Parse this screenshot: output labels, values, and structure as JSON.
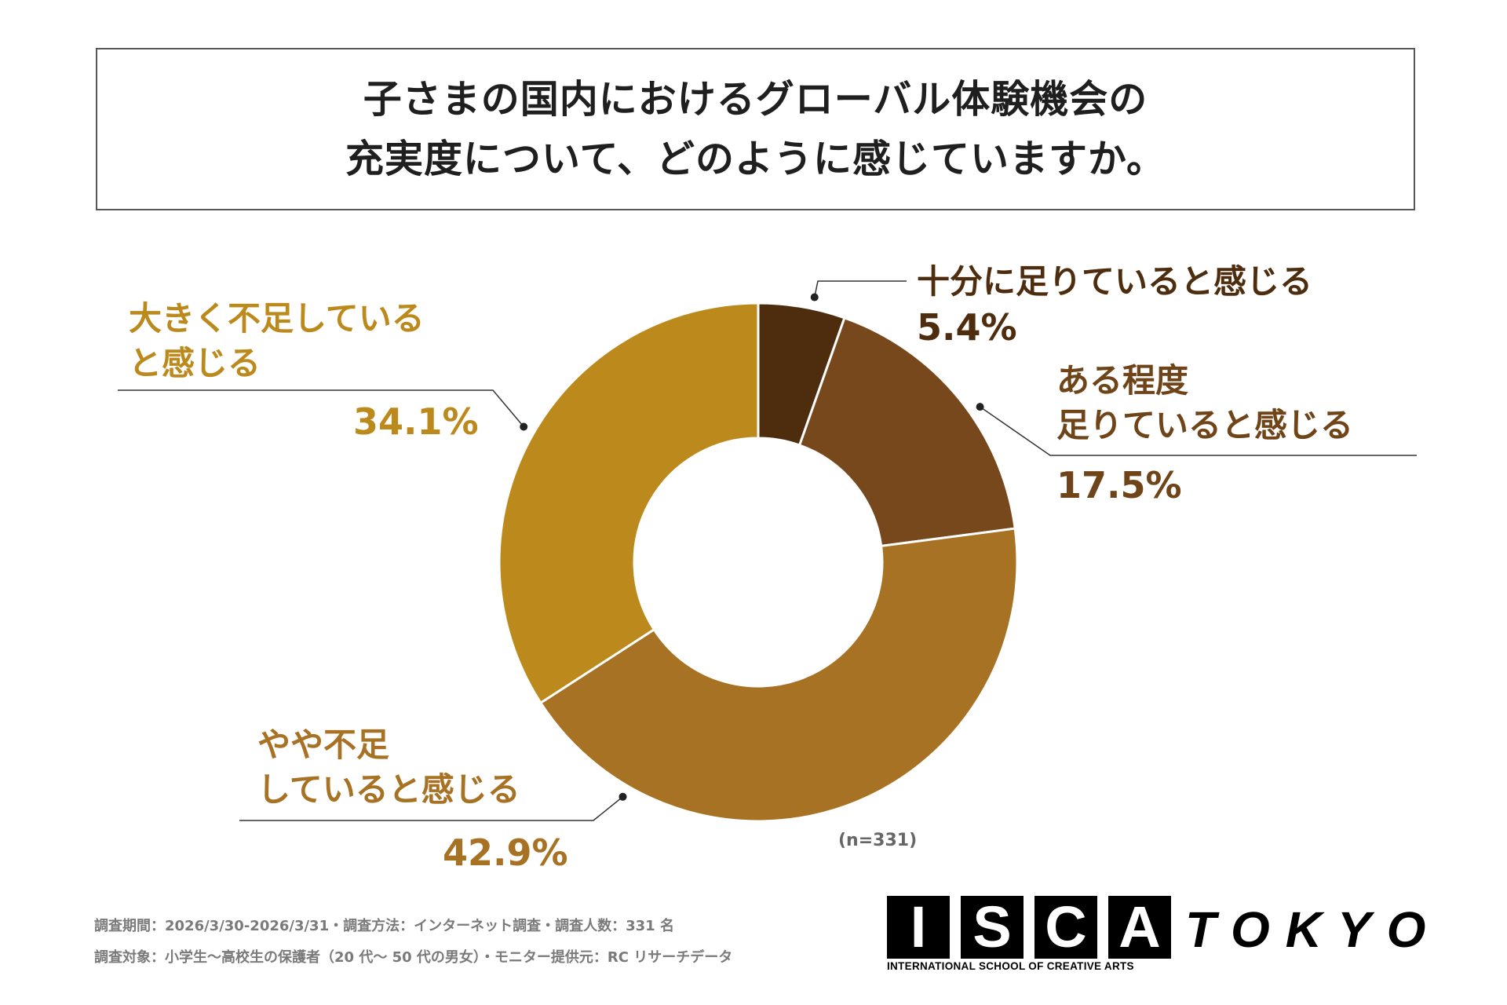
{
  "title": {
    "line1": "子さまの国内におけるグローバル体験機会の",
    "line2": "充実度について、どのように感じていますか。"
  },
  "chart_data": {
    "type": "pie",
    "variant": "donut",
    "categories": [
      "十分に足りていると感じる",
      "ある程度足りていると感じる",
      "やや不足していると感じる",
      "大きく不足していると感じる"
    ],
    "values": [
      5.4,
      17.5,
      42.9,
      34.1
    ],
    "unit": "%",
    "colors": [
      "#4e2c0e",
      "#78481d",
      "#a87224",
      "#bc8a1c"
    ],
    "labels": [
      {
        "line1": "十分に足りていると感じる",
        "line2": "",
        "pct": "5.4%",
        "color": "#4e2c0e"
      },
      {
        "line1": "ある程度",
        "line2": "足りていると感じる",
        "pct": "17.5%",
        "color": "#6e4418"
      },
      {
        "line1": "やや不足",
        "line2": "していると感じる",
        "pct": "42.9%",
        "color": "#a87224"
      },
      {
        "line1": "大きく不足している",
        "line2": "と感じる",
        "pct": "34.1%",
        "color": "#bc8a1c"
      }
    ],
    "sample_note": "(n=331)"
  },
  "footer": {
    "line1": "調査期間：2026/3/30-2026/3/31・調査方法：インターネット調査・調査人数：331 名",
    "line2": "調査対象：小学生～高校生の保護者（20 代～ 50 代の男女）・モニター提供元：RC リサーチデータ"
  },
  "logo": {
    "letters": [
      "I",
      "S",
      "C",
      "A"
    ],
    "tokyo": "TOKYO",
    "subtitle": "INTERNATIONAL SCHOOL OF CREATIVE ARTS"
  }
}
